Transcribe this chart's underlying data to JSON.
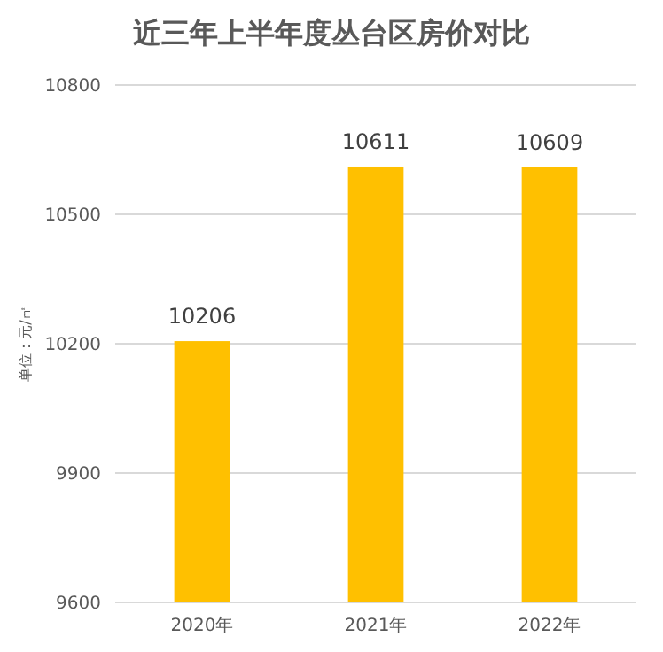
{
  "chart_data": {
    "type": "bar",
    "title": "近三年上半年度丛台区房价对比",
    "ylabel": "单位：元/㎡",
    "categories": [
      "2020年",
      "2021年",
      "2022年"
    ],
    "values": [
      10206,
      10611,
      10609
    ],
    "color": "#ffc000",
    "ylim": [
      9600,
      10800
    ],
    "yticks": [
      9600,
      9900,
      10200,
      10500,
      10800
    ],
    "grid": "y",
    "data_labels": true
  }
}
